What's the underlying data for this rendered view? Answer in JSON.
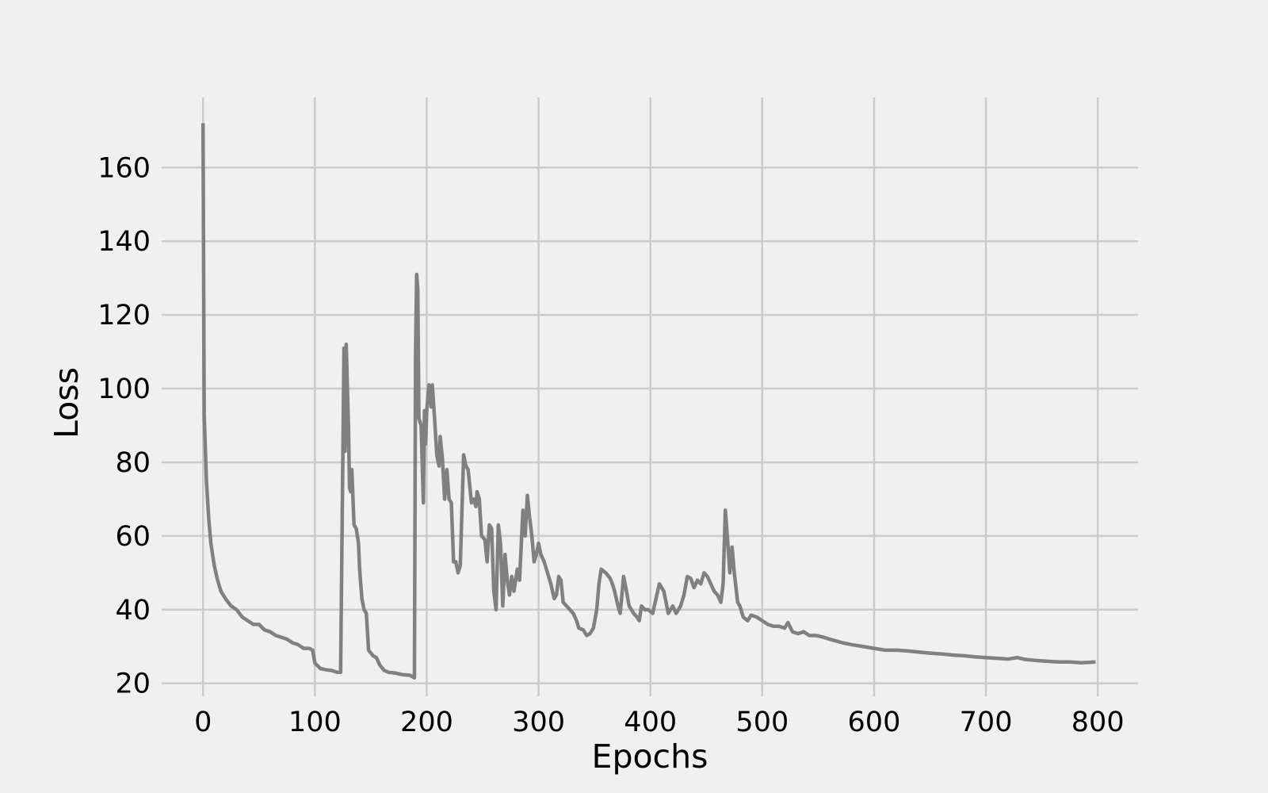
{
  "chart_data": {
    "type": "line",
    "x_label": "Epochs",
    "y_label": "Loss",
    "xlim": [
      -37,
      836
    ],
    "ylim": [
      16.5,
      179
    ],
    "xticks": [
      0,
      100,
      200,
      300,
      400,
      500,
      600,
      700,
      800
    ],
    "yticks": [
      20,
      40,
      60,
      80,
      100,
      120,
      140,
      160
    ],
    "grid": true,
    "background": "#f0f0f0",
    "series": [
      {
        "color": "#808080",
        "x": [
          0,
          1,
          3,
          5,
          7,
          10,
          13,
          16,
          20,
          25,
          30,
          35,
          40,
          45,
          50,
          55,
          60,
          65,
          70,
          75,
          80,
          85,
          90,
          95,
          98,
          100,
          105,
          110,
          115,
          120,
          123,
          126,
          127,
          128,
          130,
          131,
          132,
          133,
          135,
          137,
          139,
          140,
          142,
          144,
          146,
          148,
          152,
          155,
          158,
          162,
          166,
          172,
          176,
          180,
          185,
          189,
          190,
          191,
          192,
          193,
          195,
          197,
          198,
          199,
          200,
          202,
          204,
          205,
          207,
          209,
          211,
          212,
          214,
          216,
          218,
          220,
          222,
          224,
          226,
          228,
          230,
          233,
          235,
          237,
          240,
          242,
          244,
          245,
          247,
          249,
          252,
          254,
          256,
          258,
          260,
          262,
          264,
          266,
          268,
          270,
          272,
          274,
          276,
          278,
          281,
          283,
          286,
          288,
          290,
          292,
          294,
          296,
          298,
          300,
          302,
          305,
          308,
          311,
          314,
          316,
          318,
          320,
          322,
          325,
          328,
          331,
          334,
          336,
          340,
          343,
          346,
          349,
          352,
          354,
          356,
          360,
          364,
          366,
          368,
          371,
          373,
          376,
          378,
          381,
          385,
          388,
          390,
          392,
          395,
          398,
          402,
          405,
          408,
          410,
          412,
          414,
          416,
          420,
          423,
          427,
          430,
          433,
          436,
          439,
          442,
          445,
          448,
          451,
          454,
          457,
          460,
          463,
          465,
          467,
          469,
          471,
          473,
          475,
          478,
          480,
          483,
          487,
          490,
          495,
          500,
          505,
          510,
          515,
          520,
          523,
          527,
          532,
          537,
          542,
          548,
          555,
          560,
          566,
          572,
          580,
          590,
          600,
          610,
          620,
          630,
          640,
          650,
          660,
          670,
          680,
          690,
          700,
          710,
          720,
          728,
          735,
          745,
          755,
          765,
          775,
          785,
          792,
          798
        ],
        "values": [
          172,
          93,
          75,
          65,
          58,
          52,
          48,
          45,
          43,
          41,
          40,
          38,
          37,
          36,
          36,
          34.5,
          34,
          33,
          32.5,
          32,
          31,
          30.5,
          29.5,
          29.5,
          29,
          25.5,
          24,
          23.7,
          23.5,
          23,
          23,
          111,
          83,
          112,
          90,
          73,
          72,
          78,
          63,
          62,
          58,
          51,
          43,
          40,
          39,
          29,
          27.5,
          27,
          25,
          23.5,
          23,
          22.8,
          22.5,
          22.3,
          22.2,
          21.5,
          110,
          131,
          127,
          92,
          90,
          69,
          94,
          85,
          94,
          101,
          95,
          101,
          92,
          82,
          79,
          87,
          81,
          70,
          78,
          70,
          69,
          53,
          53,
          50,
          52,
          82,
          79,
          78,
          69,
          70,
          68,
          72,
          70,
          60,
          59,
          53,
          63,
          62,
          45,
          40,
          63,
          58,
          41,
          55,
          48,
          44,
          49,
          45,
          51,
          48,
          67,
          60,
          71,
          65,
          60,
          53,
          55,
          58,
          55,
          53,
          50,
          47,
          43,
          44,
          49,
          48,
          42,
          41,
          40,
          39,
          37,
          35,
          34.5,
          33,
          33.5,
          35,
          40,
          47,
          51,
          50,
          48.5,
          47,
          45,
          41,
          39,
          49,
          46,
          41,
          39,
          38,
          37,
          41,
          40,
          40,
          39,
          43,
          47,
          46,
          45,
          42,
          39,
          41,
          39,
          41,
          44,
          49,
          48.5,
          46,
          48,
          47,
          50,
          49,
          47,
          45,
          44,
          42,
          47,
          67,
          59,
          50,
          57,
          50,
          42,
          41,
          38,
          37,
          38.5,
          38,
          37,
          36,
          35.5,
          35.5,
          35,
          36.5,
          34,
          33.5,
          34,
          33,
          33,
          32.5,
          32,
          31.5,
          31,
          30.5,
          30,
          29.5,
          29,
          29,
          28.8,
          28.5,
          28.2,
          28,
          27.7,
          27.5,
          27.2,
          27,
          26.8,
          26.6,
          27,
          26.5,
          26.2,
          26,
          25.8,
          25.8,
          25.6,
          25.7,
          25.8
        ]
      }
    ]
  }
}
